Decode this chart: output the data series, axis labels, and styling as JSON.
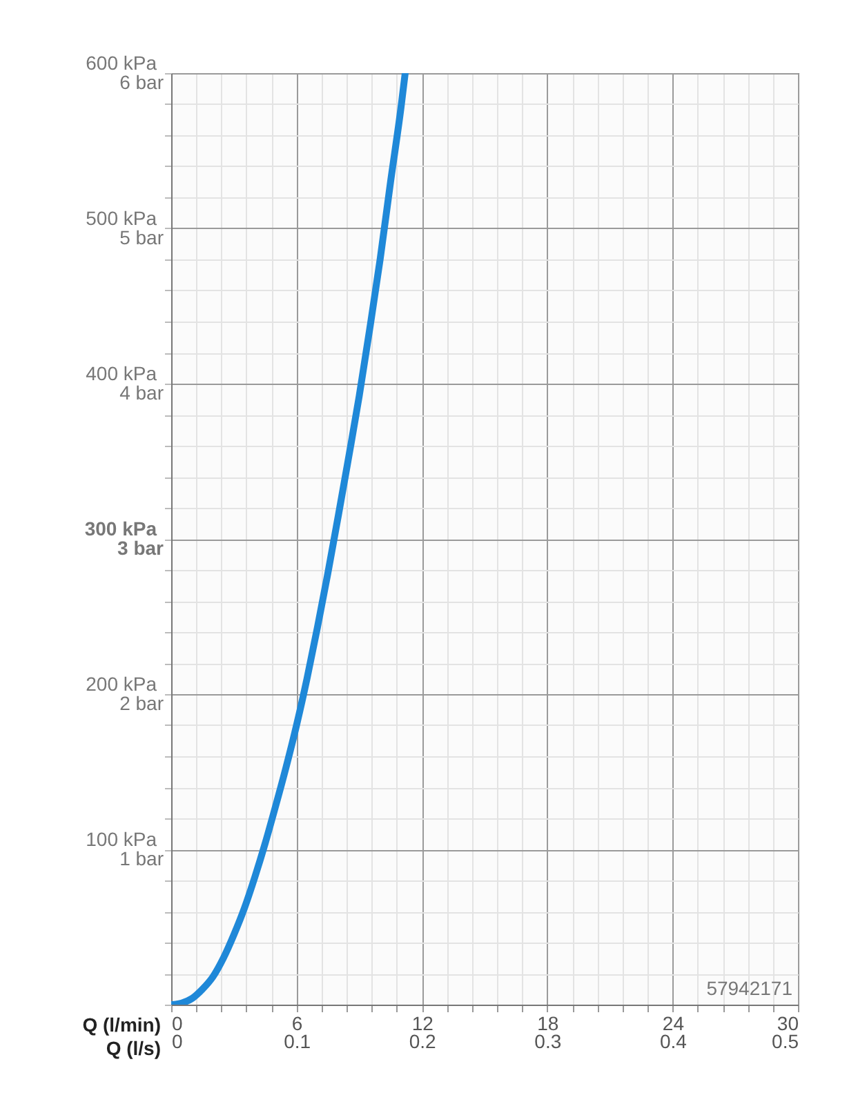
{
  "chart_data": {
    "type": "line",
    "xlabel": "Q (l/min)",
    "x2label": "Q (l/s)",
    "annotations": [
      "57942171"
    ],
    "x": [
      0,
      0.5,
      1,
      1.5,
      2,
      2.5,
      3,
      3.5,
      4,
      4.5,
      5,
      5.5,
      6,
      6.5,
      7,
      7.5,
      8,
      8.5,
      9,
      9.5,
      10,
      10.5,
      11,
      11.2
    ],
    "series": [
      {
        "color": "#1f88d8",
        "values": [
          0,
          1,
          4,
          10,
          18,
          30,
          45,
          62,
          82,
          104,
          128,
          153,
          180,
          210,
          243,
          278,
          315,
          353,
          392,
          435,
          480,
          530,
          578,
          600
        ]
      }
    ],
    "xlim": [
      0,
      30
    ],
    "ylim": [
      0,
      600
    ],
    "x2lim": [
      0,
      0.5
    ],
    "y2lim": [
      0,
      6
    ],
    "xticks": [
      0,
      {
        "value": 1.2,
        "label": null
      },
      {
        "value": 2.4,
        "label": null
      },
      {
        "value": 3.6,
        "label": null
      },
      {
        "value": 4.8,
        "label": null
      },
      6,
      {
        "value": 7.2,
        "label": null
      },
      {
        "value": 8.4,
        "label": null
      },
      {
        "value": 9.6,
        "label": null
      },
      {
        "value": 10.8,
        "label": null
      },
      12,
      {
        "value": 13.2,
        "label": null
      },
      {
        "value": 14.4,
        "label": null
      },
      {
        "value": 15.6,
        "label": null
      },
      {
        "value": 16.8,
        "label": null
      },
      18,
      {
        "value": 19.2,
        "label": null
      },
      {
        "value": 20.4,
        "label": null
      },
      {
        "value": 21.6,
        "label": null
      },
      {
        "value": 22.8,
        "label": null
      },
      24,
      {
        "value": 25.2,
        "label": null
      },
      {
        "value": 26.4,
        "label": null
      },
      {
        "value": 27.6,
        "label": null
      },
      {
        "value": 28.8,
        "label": null
      },
      30
    ],
    "x2ticks": [
      0,
      0.1,
      0.2,
      0.3,
      0.4,
      0.5
    ],
    "yticks": [
      {
        "value": 0,
        "label": null
      },
      {
        "value": 20,
        "label": null
      },
      {
        "value": 40,
        "label": null
      },
      {
        "value": 60,
        "label": null
      },
      {
        "value": 80,
        "label": null
      },
      {
        "value": 100,
        "label": "100 kPa"
      },
      {
        "value": 120,
        "label": null
      },
      {
        "value": 140,
        "label": null
      },
      {
        "value": 160,
        "label": null
      },
      {
        "value": 180,
        "label": null
      },
      {
        "value": 200,
        "label": "200 kPa"
      },
      {
        "value": 220,
        "label": null
      },
      {
        "value": 240,
        "label": null
      },
      {
        "value": 260,
        "label": null
      },
      {
        "value": 280,
        "label": null
      },
      {
        "value": 300,
        "label": "300 kPa"
      },
      {
        "value": 320,
        "label": null
      },
      {
        "value": 340,
        "label": null
      },
      {
        "value": 360,
        "label": null
      },
      {
        "value": 380,
        "label": null
      },
      {
        "value": 400,
        "label": "400 kPa"
      },
      {
        "value": 420,
        "label": null
      },
      {
        "value": 440,
        "label": null
      },
      {
        "value": 460,
        "label": null
      },
      {
        "value": 480,
        "label": null
      },
      {
        "value": 500,
        "label": "500 kPa"
      },
      {
        "value": 520,
        "label": null
      },
      {
        "value": 540,
        "label": null
      },
      {
        "value": 560,
        "label": null
      },
      {
        "value": 580,
        "label": null
      },
      {
        "value": 600,
        "label": "600 kPa"
      }
    ],
    "y2ticks": [
      {
        "value": 1,
        "label": "1 bar"
      },
      {
        "value": 2,
        "label": "2 bar"
      },
      {
        "value": 3,
        "label": "3 bar"
      },
      {
        "value": 4,
        "label": "4 bar"
      },
      {
        "value": 5,
        "label": "5 bar"
      },
      {
        "value": 6,
        "label": "6 bar"
      }
    ],
    "grid": true,
    "marker": "none",
    "line_style": "solid"
  }
}
